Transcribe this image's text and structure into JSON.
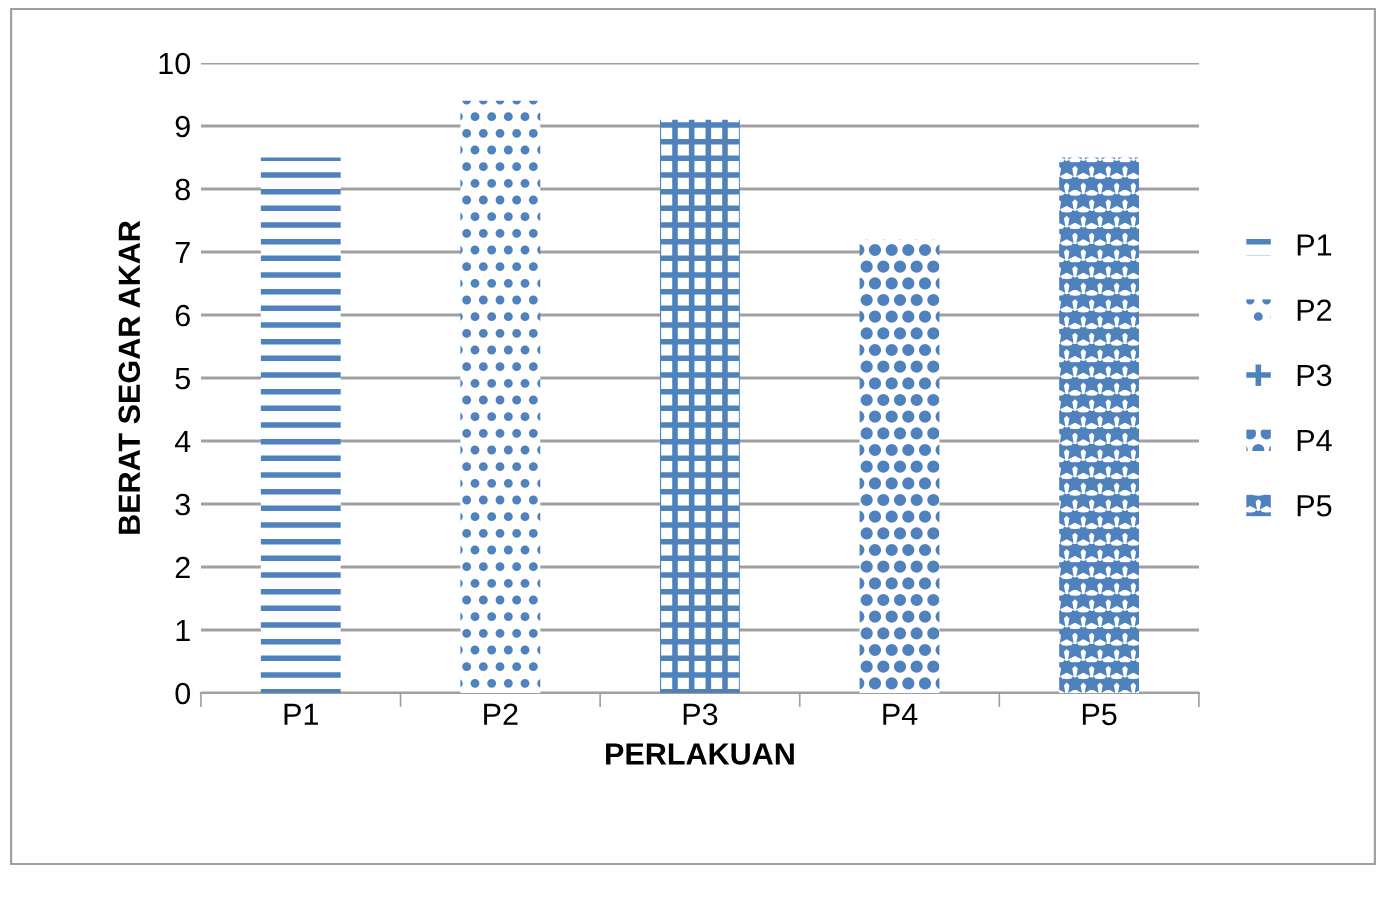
{
  "chart_data": {
    "type": "bar",
    "xlabel": "PERLAKUAN",
    "ylabel": "BERAT SEGAR AKAR",
    "categories": [
      "P1",
      "P2",
      "P3",
      "P4",
      "P5"
    ],
    "series": [
      {
        "name": "P1",
        "color": "#4f81bd",
        "values": [
          8.5,
          null,
          null,
          null,
          null
        ]
      },
      {
        "name": "P2",
        "color": "#4f81bd",
        "values": [
          null,
          9.4,
          null,
          null,
          null
        ]
      },
      {
        "name": "P3",
        "color": "#4f81bd",
        "values": [
          null,
          null,
          9.1,
          null,
          null
        ]
      },
      {
        "name": "P4",
        "color": "#4f81bd",
        "values": [
          null,
          null,
          null,
          7.2,
          null
        ]
      },
      {
        "name": "P5",
        "color": "#4f81bd",
        "values": [
          null,
          null,
          null,
          null,
          8.5
        ]
      }
    ],
    "ylim": [
      0,
      10
    ],
    "yticks": [
      0,
      1,
      2,
      3,
      4,
      5,
      6,
      7,
      8,
      9,
      10
    ],
    "grid": "y",
    "legend": "right"
  }
}
